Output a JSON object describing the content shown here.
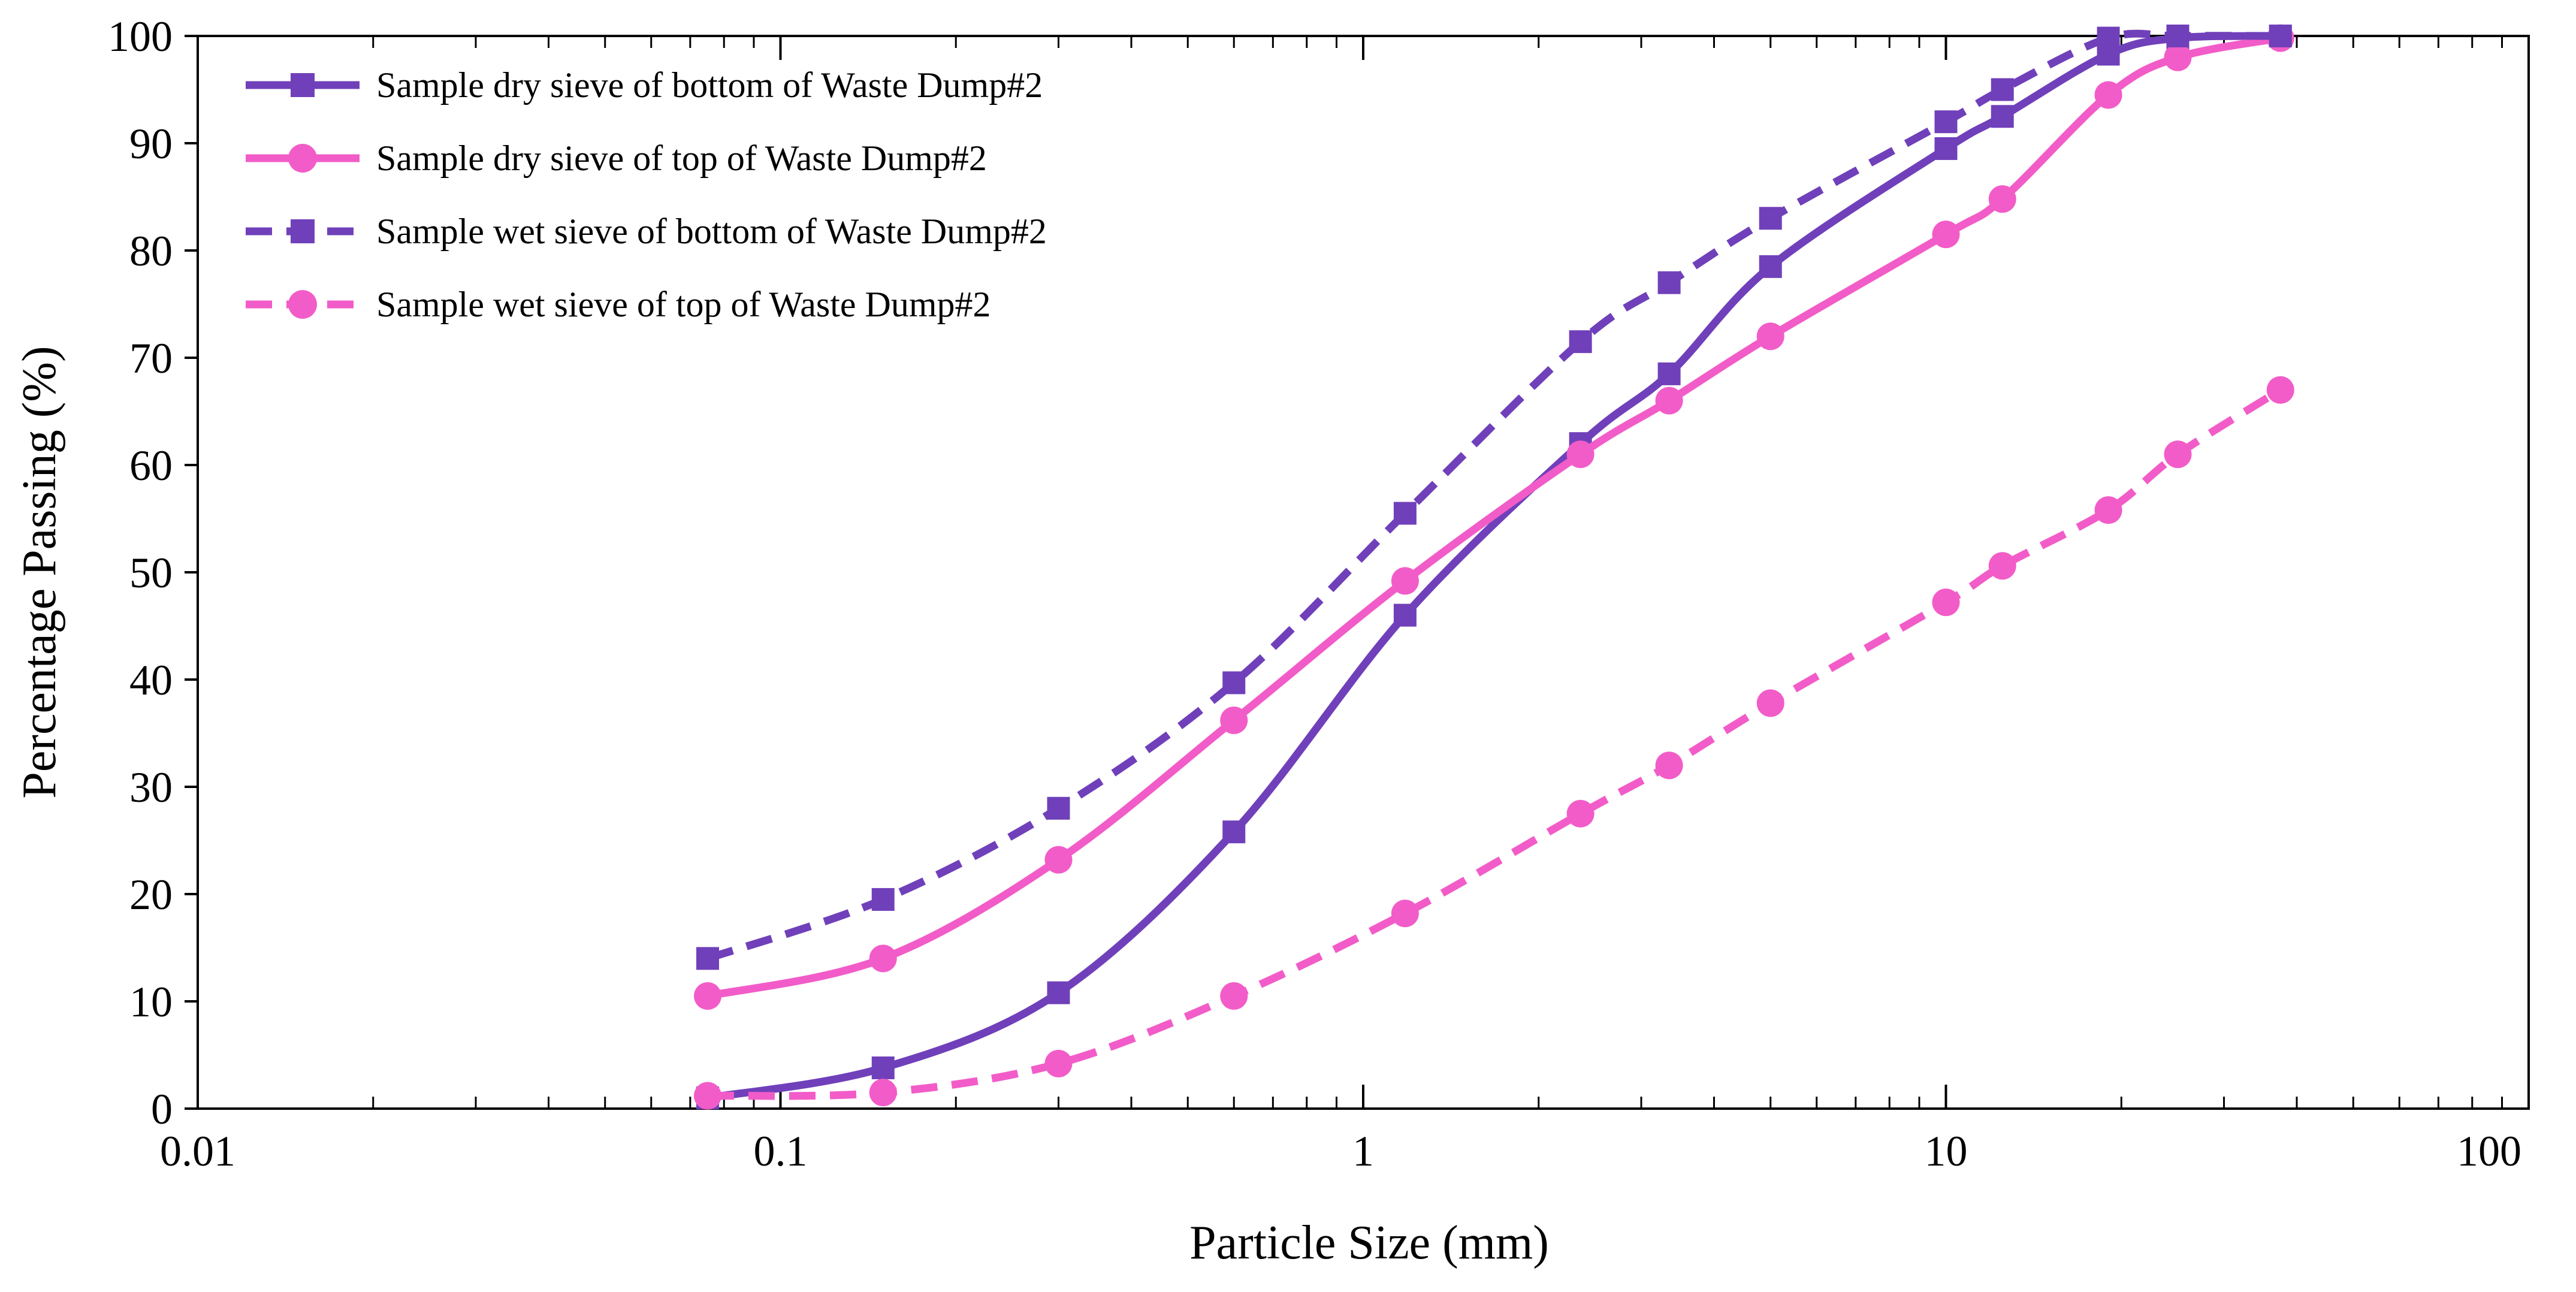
{
  "chart_data": {
    "type": "line",
    "title": "",
    "xlabel": "Particle Size (mm)",
    "ylabel": "Percentage Passing (%)",
    "xscale": "log",
    "xlim": [
      0.01,
      100
    ],
    "ylim": [
      0,
      100
    ],
    "x_tick_labels": [
      "0.01",
      "0.1",
      "1",
      "10",
      "100"
    ],
    "y_tick_labels": [
      "0",
      "10",
      "20",
      "30",
      "40",
      "50",
      "60",
      "70",
      "80",
      "90",
      "100"
    ],
    "grid": false,
    "legend_position": "top-left",
    "series": [
      {
        "name": "Sample dry sieve of bottom of Waste Dump#2",
        "color": "#7040BA",
        "marker": "square",
        "dash": "solid",
        "x": [
          0.075,
          0.15,
          0.3,
          0.6,
          1.18,
          2.36,
          3.35,
          5,
          10,
          12.5,
          19,
          25,
          37.5
        ],
        "y": [
          1,
          3.8,
          10.8,
          25.8,
          46,
          62,
          68.5,
          78.5,
          89.5,
          92.5,
          98.3,
          99.8,
          100
        ]
      },
      {
        "name": "Sample dry sieve of top of Waste Dump#2",
        "color": "#F25CC8",
        "marker": "circle",
        "dash": "solid",
        "x": [
          0.075,
          0.15,
          0.3,
          0.6,
          1.18,
          2.36,
          3.35,
          5,
          10,
          12.5,
          19,
          25,
          37.5
        ],
        "y": [
          10.5,
          14,
          23.2,
          36.2,
          49.2,
          61,
          66,
          72,
          81.5,
          84.8,
          94.5,
          98,
          99.8
        ]
      },
      {
        "name": "Sample wet sieve of bottom of Waste Dump#2",
        "color": "#7040BA",
        "marker": "square",
        "dash": "dashed",
        "x": [
          0.075,
          0.15,
          0.3,
          0.6,
          1.18,
          2.36,
          3.35,
          5,
          10,
          12.5,
          19,
          25,
          37.5
        ],
        "y": [
          14,
          19.5,
          28,
          39.7,
          55.5,
          71.5,
          77,
          83,
          92,
          95,
          99.8,
          100,
          100
        ]
      },
      {
        "name": "Sample wet sieve of top of Waste Dump#2",
        "color": "#F25CC8",
        "marker": "circle",
        "dash": "dashed",
        "x": [
          0.075,
          0.15,
          0.3,
          0.6,
          1.18,
          2.36,
          3.35,
          5,
          10,
          12.5,
          19,
          25,
          37.5
        ],
        "y": [
          1.2,
          1.5,
          4.2,
          10.5,
          18.2,
          27.5,
          32,
          37.8,
          47.2,
          50.6,
          55.8,
          61,
          67
        ]
      }
    ]
  }
}
